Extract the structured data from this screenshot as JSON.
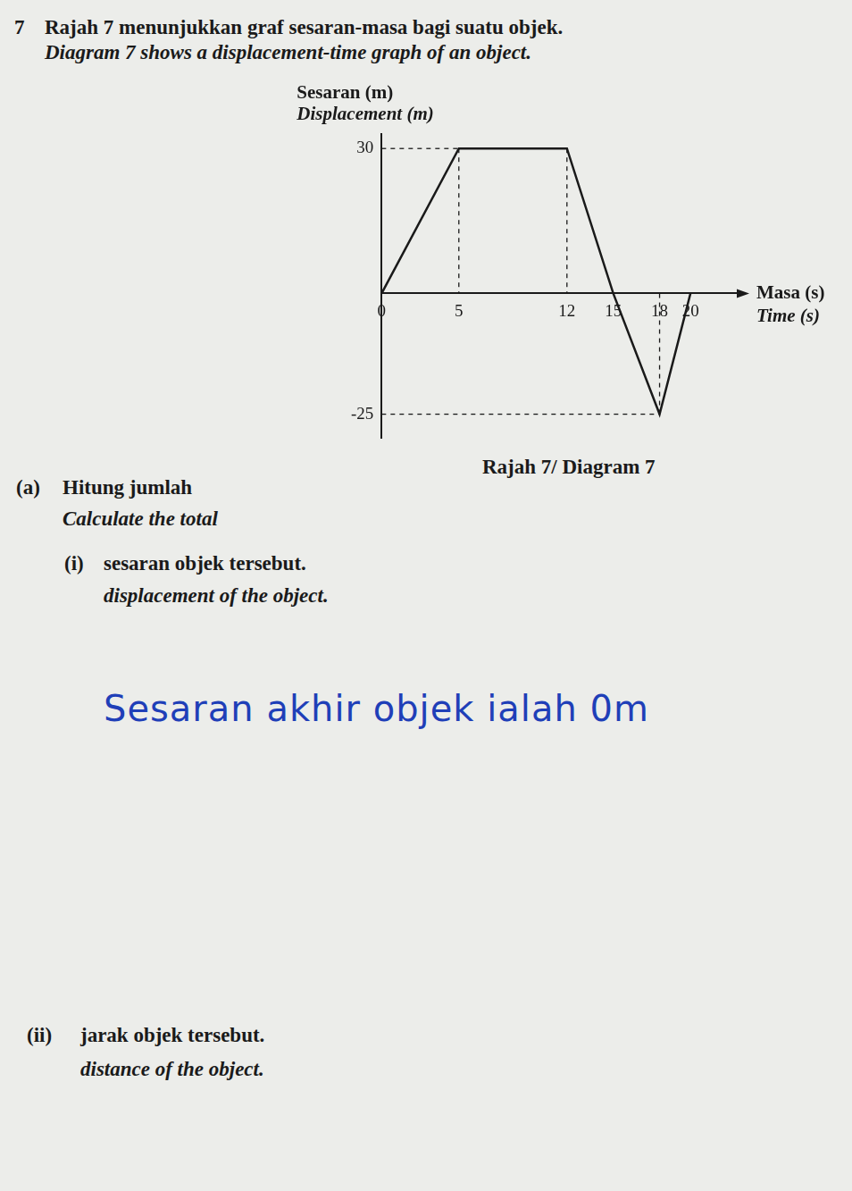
{
  "question": {
    "number": "7",
    "stem_ms": "Rajah 7 menunjukkan graf sesaran-masa bagi suatu objek.",
    "stem_en": "Diagram 7 shows a displacement-time graph of an object.",
    "caption": "Rajah 7/ Diagram 7"
  },
  "chart_data": {
    "type": "line",
    "ylabel": [
      "Sesaran (m)",
      "Displacement (m)"
    ],
    "xlabel": [
      "Masa (s)",
      "Time (s)"
    ],
    "x": [
      0,
      5,
      12,
      15,
      18,
      20
    ],
    "values": [
      0,
      30,
      30,
      0,
      -25,
      0
    ],
    "color": "#1a1a1a",
    "line_style": "solid",
    "xlim": [
      0,
      23
    ],
    "xticks": [
      0,
      5,
      12,
      15,
      18,
      20
    ],
    "ylim": [
      -30,
      33
    ],
    "yticks": [
      -25,
      30
    ],
    "grid": false
  },
  "parts": [
    {
      "label": "(a)",
      "text_ms": "Hitung jumlah",
      "text_en": "Calculate the total",
      "subparts": [
        {
          "label": "(i)",
          "text_ms": "sesaran objek tersebut.",
          "text_en": "displacement of the object.",
          "answer": "Sesaran akhir objek ialah 0m"
        },
        {
          "label": "(ii)",
          "text_ms": "jarak objek tersebut.",
          "text_en": "distance of the object."
        }
      ]
    }
  ]
}
